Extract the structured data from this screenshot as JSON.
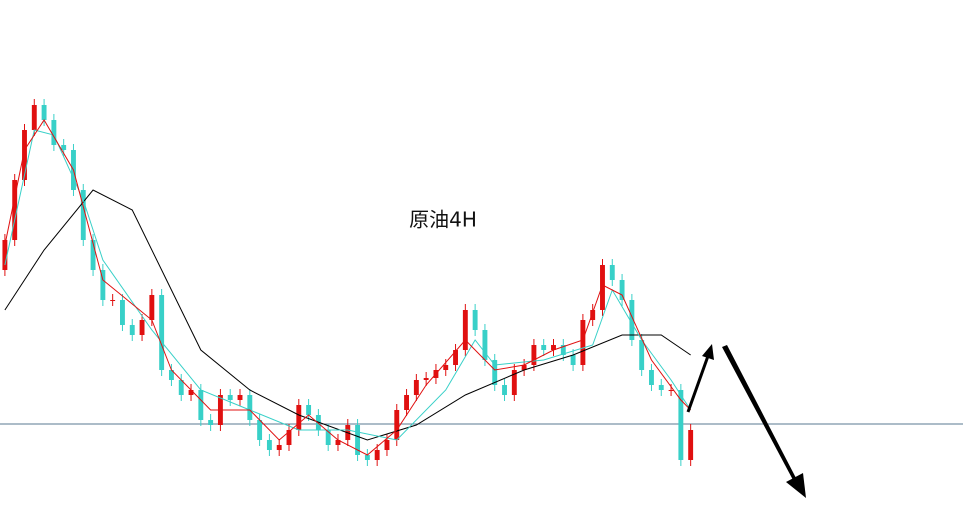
{
  "chart_data": {
    "type": "candlestick",
    "title": "原油4H",
    "up_color": "#e01010",
    "down_color": "#38d0c8",
    "xlim": [
      -0.5,
      97.8
    ],
    "ylim": [
      0,
      507
    ],
    "open": [
      237,
      267,
      327,
      377,
      402,
      387,
      362,
      357,
      317,
      267,
      237,
      207,
      207,
      182,
      172,
      187,
      212,
      137,
      127,
      112,
      117,
      87,
      82,
      112,
      107,
      112,
      87,
      67,
      57,
      62,
      77,
      102,
      92,
      77,
      62,
      67,
      82,
      52,
      47,
      57,
      67,
      97,
      112,
      127,
      129,
      137,
      142,
      157,
      197,
      177,
      147,
      122,
      112,
      137,
      142,
      162,
      157,
      162,
      152,
      142,
      187,
      197,
      242,
      227,
      207,
      167,
      137,
      122,
      117,
      117,
      47
    ],
    "high": [
      273,
      333,
      383,
      408,
      408,
      393,
      368,
      363,
      323,
      273,
      243,
      213,
      213,
      188,
      193,
      218,
      218,
      143,
      133,
      123,
      123,
      93,
      118,
      118,
      118,
      118,
      93,
      73,
      68,
      83,
      108,
      108,
      98,
      83,
      73,
      88,
      88,
      58,
      63,
      73,
      103,
      118,
      133,
      135,
      143,
      148,
      163,
      203,
      203,
      183,
      153,
      128,
      143,
      148,
      168,
      168,
      168,
      168,
      158,
      193,
      203,
      248,
      248,
      233,
      213,
      173,
      143,
      128,
      123,
      123,
      83
    ],
    "low": [
      231,
      261,
      321,
      371,
      381,
      356,
      351,
      311,
      261,
      231,
      201,
      201,
      176,
      166,
      166,
      181,
      131,
      121,
      106,
      106,
      81,
      76,
      76,
      101,
      101,
      81,
      61,
      51,
      51,
      56,
      71,
      86,
      71,
      56,
      56,
      61,
      46,
      41,
      41,
      51,
      61,
      91,
      106,
      121,
      123,
      131,
      136,
      151,
      171,
      141,
      116,
      106,
      106,
      131,
      136,
      151,
      151,
      146,
      136,
      136,
      181,
      191,
      221,
      201,
      161,
      131,
      116,
      111,
      111,
      41,
      41
    ],
    "close": [
      267,
      327,
      377,
      402,
      387,
      362,
      357,
      317,
      267,
      237,
      207,
      207,
      182,
      172,
      187,
      212,
      137,
      127,
      112,
      117,
      87,
      82,
      112,
      107,
      112,
      87,
      67,
      57,
      62,
      77,
      102,
      92,
      77,
      62,
      67,
      82,
      52,
      47,
      57,
      67,
      97,
      112,
      127,
      129,
      137,
      142,
      157,
      197,
      177,
      147,
      122,
      112,
      137,
      142,
      162,
      157,
      162,
      152,
      142,
      187,
      197,
      242,
      227,
      207,
      167,
      137,
      122,
      117,
      117,
      47,
      77
    ],
    "lines": [
      {
        "color": "#000000",
        "x": [
          0,
          4,
          9,
          13,
          16,
          20,
          25,
          30,
          37,
          42,
          47,
          53,
          58,
          63,
          67,
          70
        ],
        "values": [
          197,
          257,
          317,
          297,
          237,
          157,
          117,
          92,
          67,
          82,
          112,
          137,
          152,
          172,
          172,
          152
        ]
      },
      {
        "color": "#38d0c8",
        "x": [
          0,
          3,
          5,
          8,
          10,
          15,
          20,
          25,
          30,
          35,
          40,
          45,
          48,
          50,
          55,
          60,
          62,
          65,
          68,
          70
        ],
        "values": [
          242,
          377,
          372,
          307,
          247,
          177,
          117,
          97,
          77,
          77,
          67,
          117,
          167,
          142,
          147,
          162,
          217,
          167,
          127,
          97
        ]
      },
      {
        "color": "#e01010",
        "x": [
          0,
          2,
          4,
          7,
          10,
          15,
          17,
          21,
          25,
          28,
          31,
          34,
          37,
          40,
          43,
          47,
          50,
          53,
          56,
          59,
          61,
          63,
          66,
          69,
          70
        ],
        "values": [
          262,
          357,
          387,
          337,
          227,
          187,
          137,
          97,
          97,
          67,
          92,
          67,
          52,
          77,
          122,
          167,
          137,
          142,
          157,
          167,
          222,
          212,
          147,
          107,
          97
        ]
      }
    ],
    "hlines": [
      {
        "value": 83,
        "color": "#5a7890"
      }
    ]
  }
}
